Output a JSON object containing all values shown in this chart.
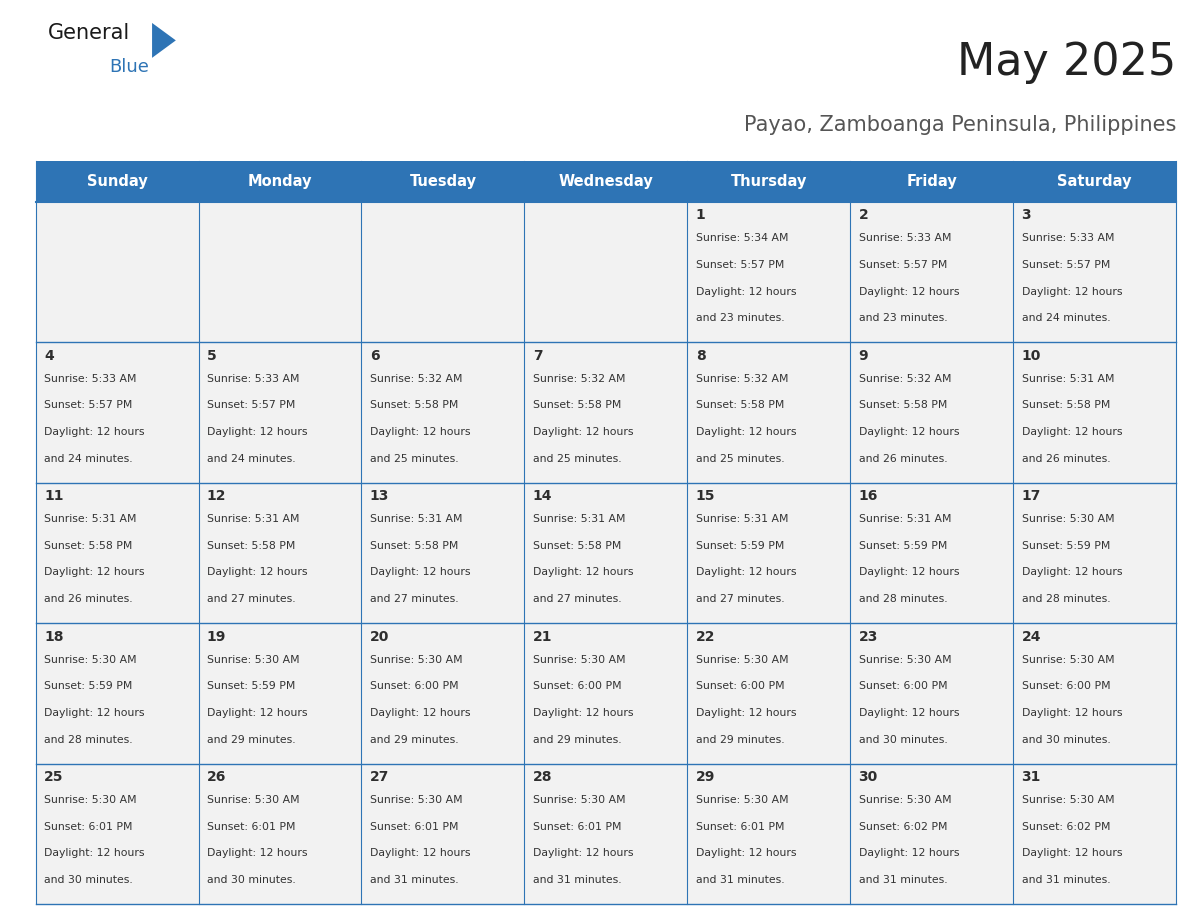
{
  "title": "May 2025",
  "subtitle": "Payao, Zamboanga Peninsula, Philippines",
  "days_of_week": [
    "Sunday",
    "Monday",
    "Tuesday",
    "Wednesday",
    "Thursday",
    "Friday",
    "Saturday"
  ],
  "header_bg": "#2E74B5",
  "header_text": "#FFFFFF",
  "row_bg": "#F2F2F2",
  "cell_border": "#2E74B5",
  "day_number_color": "#2E2E2E",
  "cell_text_color": "#333333",
  "title_color": "#222222",
  "subtitle_color": "#555555",
  "logo_text_color": "#1A1A1A",
  "logo_blue_color": "#2E74B5",
  "calendar": [
    [
      null,
      null,
      null,
      null,
      {
        "day": 1,
        "sunrise": "5:34 AM",
        "sunset": "5:57 PM",
        "daylight": "12 hours",
        "daylight2": "and 23 minutes."
      },
      {
        "day": 2,
        "sunrise": "5:33 AM",
        "sunset": "5:57 PM",
        "daylight": "12 hours",
        "daylight2": "and 23 minutes."
      },
      {
        "day": 3,
        "sunrise": "5:33 AM",
        "sunset": "5:57 PM",
        "daylight": "12 hours",
        "daylight2": "and 24 minutes."
      }
    ],
    [
      {
        "day": 4,
        "sunrise": "5:33 AM",
        "sunset": "5:57 PM",
        "daylight": "12 hours",
        "daylight2": "and 24 minutes."
      },
      {
        "day": 5,
        "sunrise": "5:33 AM",
        "sunset": "5:57 PM",
        "daylight": "12 hours",
        "daylight2": "and 24 minutes."
      },
      {
        "day": 6,
        "sunrise": "5:32 AM",
        "sunset": "5:58 PM",
        "daylight": "12 hours",
        "daylight2": "and 25 minutes."
      },
      {
        "day": 7,
        "sunrise": "5:32 AM",
        "sunset": "5:58 PM",
        "daylight": "12 hours",
        "daylight2": "and 25 minutes."
      },
      {
        "day": 8,
        "sunrise": "5:32 AM",
        "sunset": "5:58 PM",
        "daylight": "12 hours",
        "daylight2": "and 25 minutes."
      },
      {
        "day": 9,
        "sunrise": "5:32 AM",
        "sunset": "5:58 PM",
        "daylight": "12 hours",
        "daylight2": "and 26 minutes."
      },
      {
        "day": 10,
        "sunrise": "5:31 AM",
        "sunset": "5:58 PM",
        "daylight": "12 hours",
        "daylight2": "and 26 minutes."
      }
    ],
    [
      {
        "day": 11,
        "sunrise": "5:31 AM",
        "sunset": "5:58 PM",
        "daylight": "12 hours",
        "daylight2": "and 26 minutes."
      },
      {
        "day": 12,
        "sunrise": "5:31 AM",
        "sunset": "5:58 PM",
        "daylight": "12 hours",
        "daylight2": "and 27 minutes."
      },
      {
        "day": 13,
        "sunrise": "5:31 AM",
        "sunset": "5:58 PM",
        "daylight": "12 hours",
        "daylight2": "and 27 minutes."
      },
      {
        "day": 14,
        "sunrise": "5:31 AM",
        "sunset": "5:58 PM",
        "daylight": "12 hours",
        "daylight2": "and 27 minutes."
      },
      {
        "day": 15,
        "sunrise": "5:31 AM",
        "sunset": "5:59 PM",
        "daylight": "12 hours",
        "daylight2": "and 27 minutes."
      },
      {
        "day": 16,
        "sunrise": "5:31 AM",
        "sunset": "5:59 PM",
        "daylight": "12 hours",
        "daylight2": "and 28 minutes."
      },
      {
        "day": 17,
        "sunrise": "5:30 AM",
        "sunset": "5:59 PM",
        "daylight": "12 hours",
        "daylight2": "and 28 minutes."
      }
    ],
    [
      {
        "day": 18,
        "sunrise": "5:30 AM",
        "sunset": "5:59 PM",
        "daylight": "12 hours",
        "daylight2": "and 28 minutes."
      },
      {
        "day": 19,
        "sunrise": "5:30 AM",
        "sunset": "5:59 PM",
        "daylight": "12 hours",
        "daylight2": "and 29 minutes."
      },
      {
        "day": 20,
        "sunrise": "5:30 AM",
        "sunset": "6:00 PM",
        "daylight": "12 hours",
        "daylight2": "and 29 minutes."
      },
      {
        "day": 21,
        "sunrise": "5:30 AM",
        "sunset": "6:00 PM",
        "daylight": "12 hours",
        "daylight2": "and 29 minutes."
      },
      {
        "day": 22,
        "sunrise": "5:30 AM",
        "sunset": "6:00 PM",
        "daylight": "12 hours",
        "daylight2": "and 29 minutes."
      },
      {
        "day": 23,
        "sunrise": "5:30 AM",
        "sunset": "6:00 PM",
        "daylight": "12 hours",
        "daylight2": "and 30 minutes."
      },
      {
        "day": 24,
        "sunrise": "5:30 AM",
        "sunset": "6:00 PM",
        "daylight": "12 hours",
        "daylight2": "and 30 minutes."
      }
    ],
    [
      {
        "day": 25,
        "sunrise": "5:30 AM",
        "sunset": "6:01 PM",
        "daylight": "12 hours",
        "daylight2": "and 30 minutes."
      },
      {
        "day": 26,
        "sunrise": "5:30 AM",
        "sunset": "6:01 PM",
        "daylight": "12 hours",
        "daylight2": "and 30 minutes."
      },
      {
        "day": 27,
        "sunrise": "5:30 AM",
        "sunset": "6:01 PM",
        "daylight": "12 hours",
        "daylight2": "and 31 minutes."
      },
      {
        "day": 28,
        "sunrise": "5:30 AM",
        "sunset": "6:01 PM",
        "daylight": "12 hours",
        "daylight2": "and 31 minutes."
      },
      {
        "day": 29,
        "sunrise": "5:30 AM",
        "sunset": "6:01 PM",
        "daylight": "12 hours",
        "daylight2": "and 31 minutes."
      },
      {
        "day": 30,
        "sunrise": "5:30 AM",
        "sunset": "6:02 PM",
        "daylight": "12 hours",
        "daylight2": "and 31 minutes."
      },
      {
        "day": 31,
        "sunrise": "5:30 AM",
        "sunset": "6:02 PM",
        "daylight": "12 hours",
        "daylight2": "and 31 minutes."
      }
    ]
  ]
}
